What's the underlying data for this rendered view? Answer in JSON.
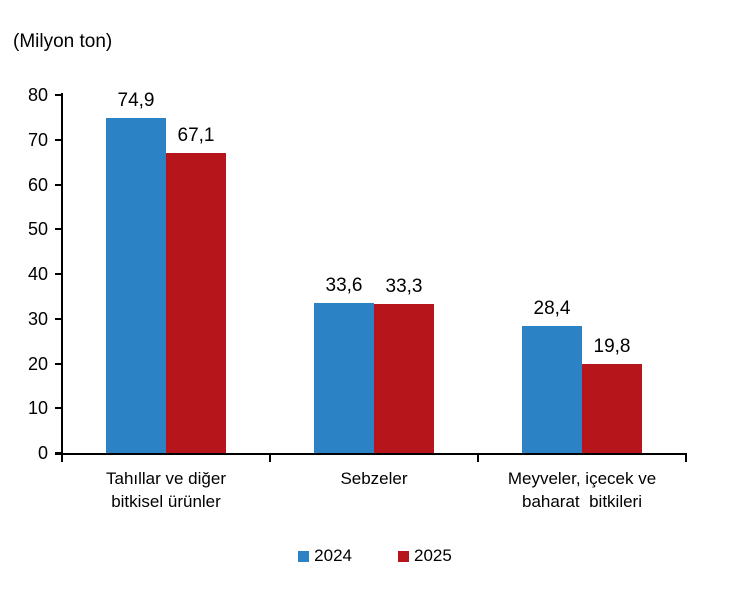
{
  "chart_data": {
    "type": "bar",
    "unit_label": "(Milyon ton)",
    "categories": [
      "Tahıllar ve diğer\nbitkisel ürünler",
      "Sebzeler",
      "Meyveler, içecek ve\nbaharat  bitkileri"
    ],
    "series": [
      {
        "name": "2024",
        "color": "#2B83C5",
        "values": [
          74.9,
          33.6,
          28.4
        ]
      },
      {
        "name": "2025",
        "color": "#B6151B",
        "values": [
          67.1,
          33.3,
          19.8
        ]
      }
    ],
    "value_labels": [
      [
        "74,9",
        "67,1"
      ],
      [
        "33,6",
        "33,3"
      ],
      [
        "28,4",
        "19,8"
      ]
    ],
    "ylim": [
      0,
      80
    ],
    "ytick_step": 10,
    "ytick_labels": [
      "0",
      "10",
      "20",
      "30",
      "40",
      "50",
      "60",
      "70",
      "80"
    ],
    "grid": false,
    "legend_position": "bottom",
    "axis_color": "#000000",
    "text_color": "#000000"
  }
}
